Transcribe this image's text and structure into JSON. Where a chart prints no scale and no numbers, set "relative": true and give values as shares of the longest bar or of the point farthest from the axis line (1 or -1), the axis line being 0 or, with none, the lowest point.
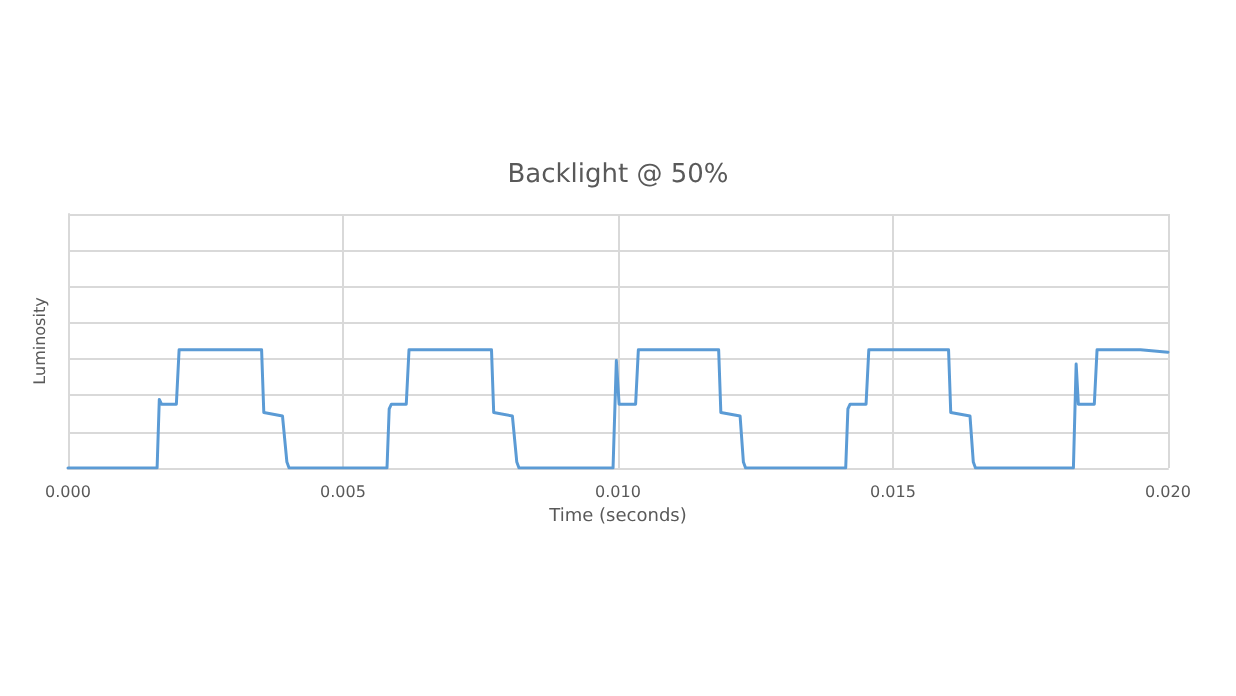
{
  "chart_data": {
    "type": "line",
    "title": "Backlight @ 50%",
    "xlabel": "Time (seconds)",
    "ylabel": "Luminosity",
    "relative": true,
    "grid": true,
    "marker": "none",
    "line_style": "solid",
    "xlim": [
      0,
      0.02
    ],
    "xticks": [
      {
        "value": 0,
        "label": "0.000"
      },
      {
        "value": 0.005,
        "label": "0.005"
      },
      {
        "value": 0.01,
        "label": "0.010"
      },
      {
        "value": 0.015,
        "label": "0.015"
      },
      {
        "value": 0.02,
        "label": "0.020"
      }
    ],
    "series": [
      {
        "color": "#5b9bd5",
        "x": [
          0,
          0.00162,
          0.00166,
          0.0017,
          0.00197,
          0.00202,
          0.00352,
          0.00356,
          0.0039,
          0.00398,
          0.00402,
          0.0058,
          0.00584,
          0.00588,
          0.00615,
          0.0062,
          0.0077,
          0.00774,
          0.00808,
          0.00816,
          0.0082,
          0.00991,
          0.00997,
          0.01002,
          0.01032,
          0.01037,
          0.01183,
          0.01187,
          0.01222,
          0.01228,
          0.01232,
          0.01414,
          0.01418,
          0.01422,
          0.01451,
          0.01456,
          0.01601,
          0.01605,
          0.0164,
          0.01646,
          0.0165,
          0.01828,
          0.01833,
          0.01837,
          0.01866,
          0.01871,
          0.0195,
          0.02
        ],
        "values": [
          0,
          0,
          0.58,
          0.54,
          0.54,
          1,
          1,
          0.47,
          0.44,
          0.05,
          0,
          0,
          0.5,
          0.54,
          0.54,
          1,
          1,
          0.47,
          0.44,
          0.05,
          0,
          0,
          0.91,
          0.54,
          0.54,
          1,
          1,
          0.47,
          0.44,
          0.05,
          0,
          0,
          0.5,
          0.54,
          0.54,
          1,
          1,
          0.47,
          0.44,
          0.05,
          0,
          0,
          0.88,
          0.54,
          0.54,
          1,
          1,
          0.98
        ]
      }
    ]
  }
}
